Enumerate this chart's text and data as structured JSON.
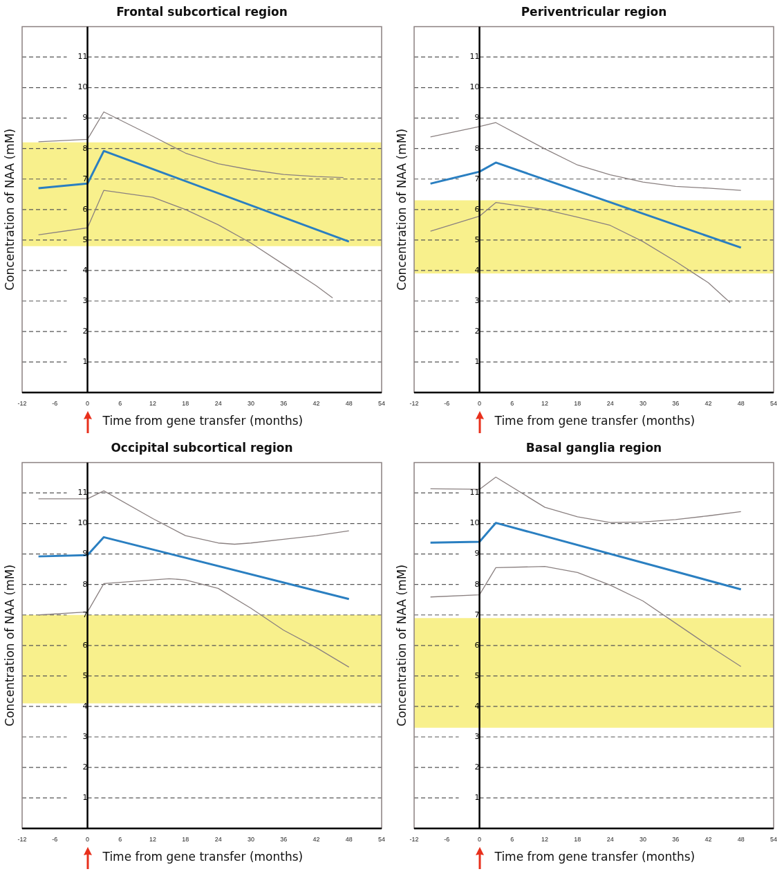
{
  "chart_data": [
    {
      "type": "line",
      "title": "Frontal subcortical region",
      "xlabel": "Time from gene transfer (months)",
      "ylabel": "Concentration of NAA (mM)",
      "xlim": [
        -12,
        54
      ],
      "xticks": [
        -12,
        -6,
        0,
        6,
        12,
        18,
        24,
        30,
        36,
        42,
        48,
        54
      ],
      "ylim": [
        0,
        12
      ],
      "yticks": [
        1,
        2,
        3,
        4,
        5,
        6,
        7,
        8,
        9,
        10,
        11
      ],
      "grid": "y",
      "legend": false,
      "marker": "none",
      "bands": [
        {
          "axis": "y",
          "from": 4.8,
          "to": 8.2,
          "color": "#f8f08c"
        }
      ],
      "series": [
        {
          "color": "#2a7fc1",
          "x": [
            -9,
            0,
            3,
            48
          ],
          "values": [
            6.7,
            6.85,
            7.92,
            4.95
          ]
        },
        {
          "color": "#8a8080",
          "x": [
            -9,
            0,
            3,
            12,
            18,
            24,
            30,
            36,
            42,
            47
          ],
          "values": [
            8.22,
            8.3,
            9.2,
            8.4,
            7.85,
            7.5,
            7.3,
            7.15,
            7.08,
            7.05
          ]
        },
        {
          "color": "#8a8080",
          "x": [
            -9,
            0,
            3,
            12,
            18,
            24,
            30,
            36,
            42,
            45
          ],
          "values": [
            5.17,
            5.4,
            6.63,
            6.4,
            6.0,
            5.5,
            4.9,
            4.2,
            3.5,
            3.1
          ]
        }
      ]
    },
    {
      "type": "line",
      "title": "Periventricular region",
      "xlabel": "Time from gene transfer (months)",
      "ylabel": "Concentration of NAA (mM)",
      "xlim": [
        -12,
        54
      ],
      "xticks": [
        -12,
        -6,
        0,
        6,
        12,
        18,
        24,
        30,
        36,
        42,
        48,
        54
      ],
      "ylim": [
        0,
        12
      ],
      "yticks": [
        1,
        2,
        3,
        4,
        5,
        6,
        7,
        8,
        9,
        10,
        11
      ],
      "grid": "y",
      "legend": false,
      "marker": "none",
      "bands": [
        {
          "axis": "y",
          "from": 3.9,
          "to": 6.3,
          "color": "#f8f08c"
        }
      ],
      "series": [
        {
          "color": "#2a7fc1",
          "x": [
            -9,
            0,
            3,
            48
          ],
          "values": [
            6.85,
            7.24,
            7.54,
            4.75
          ]
        },
        {
          "color": "#8a8080",
          "x": [
            -9,
            0,
            3,
            12,
            18,
            24,
            30,
            36,
            42,
            48
          ],
          "values": [
            8.38,
            8.72,
            8.85,
            7.99,
            7.46,
            7.14,
            6.9,
            6.76,
            6.7,
            6.63
          ]
        },
        {
          "color": "#8a8080",
          "x": [
            -9,
            0,
            3,
            12,
            18,
            24,
            30,
            36,
            42,
            46
          ],
          "values": [
            5.29,
            5.78,
            6.23,
            6.0,
            5.75,
            5.48,
            4.95,
            4.3,
            3.6,
            2.95
          ]
        }
      ]
    },
    {
      "type": "line",
      "title": "Occipital subcortical region",
      "xlabel": "Time from gene transfer (months)",
      "ylabel": "Concentration of NAA (mM)",
      "xlim": [
        -12,
        54
      ],
      "xticks": [
        -12,
        -6,
        0,
        6,
        12,
        18,
        24,
        30,
        36,
        42,
        48,
        54
      ],
      "ylim": [
        0,
        12
      ],
      "yticks": [
        1,
        2,
        3,
        4,
        5,
        6,
        7,
        8,
        9,
        10,
        11
      ],
      "grid": "y",
      "legend": false,
      "marker": "none",
      "bands": [
        {
          "axis": "y",
          "from": 4.1,
          "to": 7.0,
          "color": "#f8f08c"
        }
      ],
      "series": [
        {
          "color": "#2a7fc1",
          "x": [
            -9,
            0,
            3,
            48
          ],
          "values": [
            8.92,
            8.96,
            9.55,
            7.52
          ]
        },
        {
          "color": "#8a8080",
          "x": [
            -9,
            0,
            3,
            12,
            18,
            24,
            27,
            30,
            36,
            42,
            48
          ],
          "values": [
            10.81,
            10.81,
            11.07,
            10.16,
            9.6,
            9.36,
            9.32,
            9.36,
            9.48,
            9.6,
            9.76
          ]
        },
        {
          "color": "#8a8080",
          "x": [
            -9,
            0,
            3,
            15,
            18,
            24,
            30,
            36,
            42,
            48
          ],
          "values": [
            7.0,
            7.1,
            8.03,
            8.19,
            8.15,
            7.87,
            7.22,
            6.5,
            5.93,
            5.29
          ]
        }
      ]
    },
    {
      "type": "line",
      "title": "Basal ganglia region",
      "xlabel": "Time from gene transfer (months)",
      "ylabel": "Concentration of NAA (mM)",
      "xlim": [
        -12,
        54
      ],
      "xticks": [
        -12,
        -6,
        0,
        6,
        12,
        18,
        24,
        30,
        36,
        42,
        48,
        54
      ],
      "ylim": [
        0,
        12
      ],
      "yticks": [
        1,
        2,
        3,
        4,
        5,
        6,
        7,
        8,
        9,
        10,
        11
      ],
      "grid": "y",
      "legend": false,
      "marker": "none",
      "bands": [
        {
          "axis": "y",
          "from": 3.3,
          "to": 6.9,
          "color": "#f8f08c"
        }
      ],
      "series": [
        {
          "color": "#2a7fc1",
          "x": [
            -9,
            0,
            3,
            48
          ],
          "values": [
            9.37,
            9.4,
            10.02,
            7.84
          ]
        },
        {
          "color": "#8a8080",
          "x": [
            -9,
            0,
            3,
            12,
            18,
            24,
            30,
            36,
            42,
            48
          ],
          "values": [
            11.14,
            11.12,
            11.52,
            10.53,
            10.22,
            10.03,
            10.05,
            10.13,
            10.25,
            10.39
          ]
        },
        {
          "color": "#8a8080",
          "x": [
            -9,
            0,
            3,
            12,
            18,
            24,
            30,
            36,
            42,
            48
          ],
          "values": [
            7.59,
            7.66,
            8.55,
            8.59,
            8.39,
            7.98,
            7.46,
            6.73,
            6.0,
            5.31
          ]
        }
      ]
    }
  ]
}
